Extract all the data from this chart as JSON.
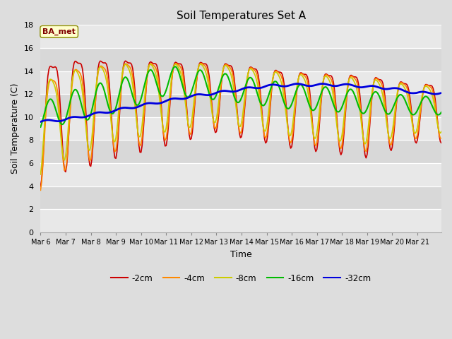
{
  "title": "Soil Temperatures Set A",
  "xlabel": "Time",
  "ylabel": "Soil Temperature (C)",
  "ylim": [
    0,
    18
  ],
  "yticks": [
    0,
    2,
    4,
    6,
    8,
    10,
    12,
    14,
    16,
    18
  ],
  "annotation": "BA_met",
  "bg_color": "#dddddd",
  "plot_bg_color": "#dddddd",
  "line_colors": {
    "-2cm": "#cc0000",
    "-4cm": "#ff8800",
    "-8cm": "#cccc00",
    "-16cm": "#00bb00",
    "-32cm": "#0000dd"
  },
  "x_tick_labels": [
    "Mar 6",
    "Mar 7",
    "Mar 8",
    "Mar 9",
    "Mar 10",
    "Mar 11",
    "Mar 12",
    "Mar 13",
    "Mar 14",
    "Mar 15",
    "Mar 16",
    "Mar 17",
    "Mar 18",
    "Mar 19",
    "Mar 20",
    "Mar 21"
  ],
  "n_days": 16,
  "pts_per_day": 24
}
